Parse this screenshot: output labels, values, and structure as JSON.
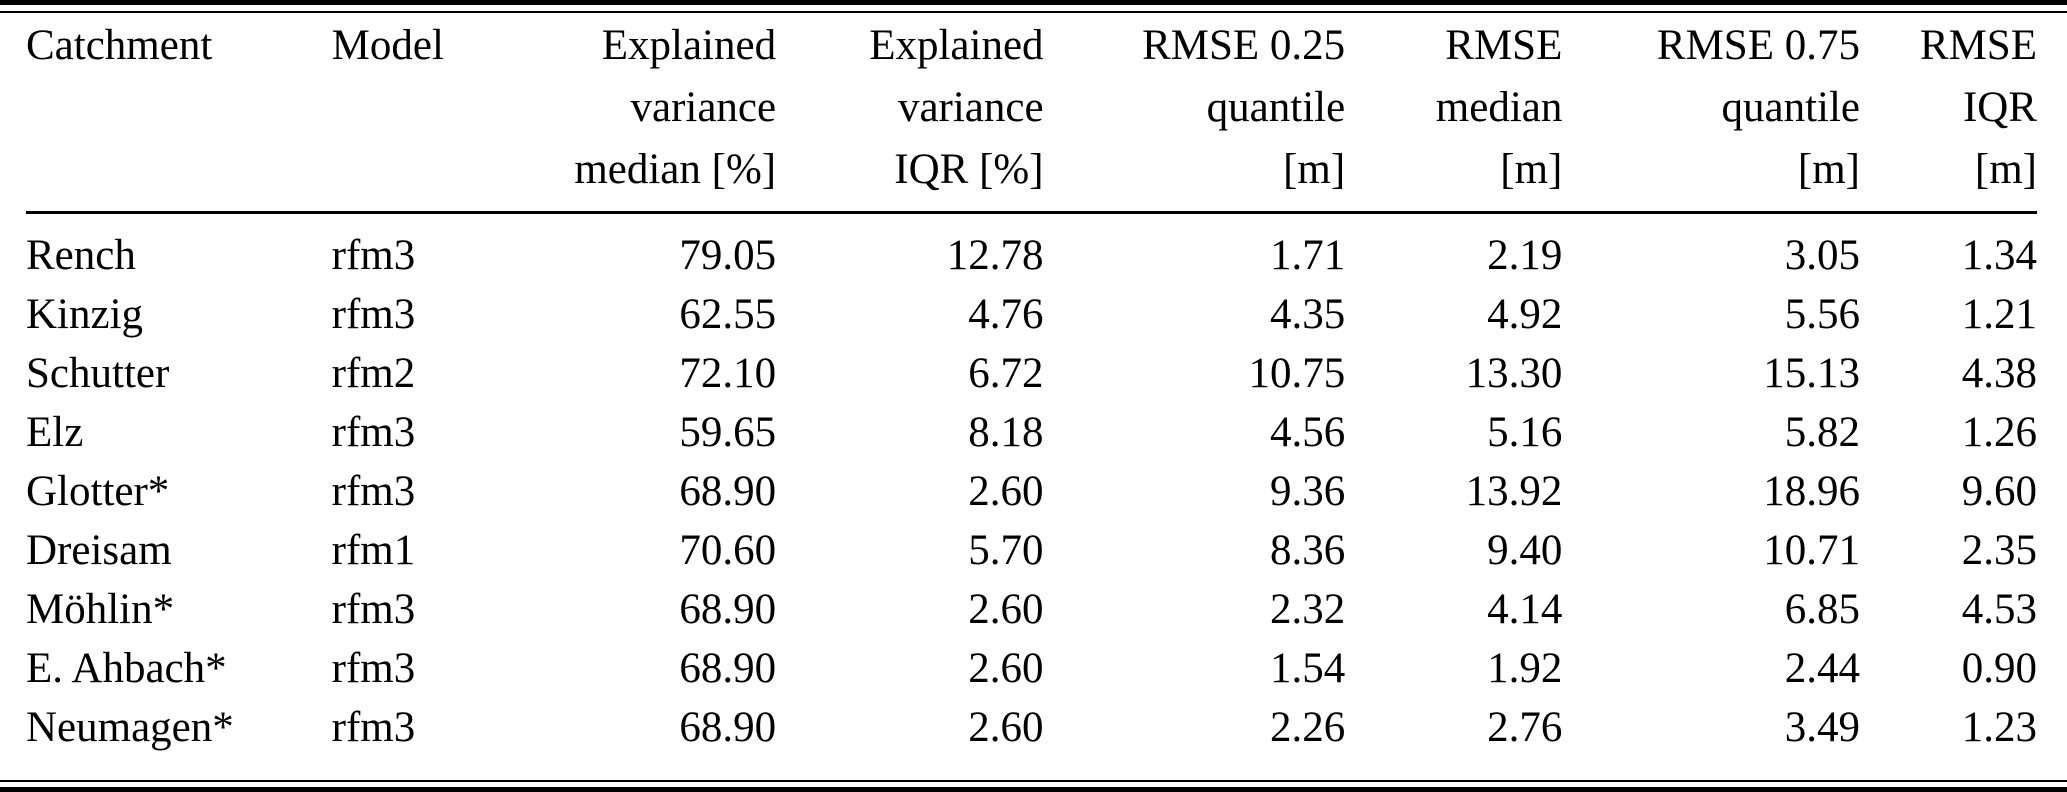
{
  "colors": {
    "text": "#000000",
    "background": "#ffffff",
    "rule": "#000000"
  },
  "table": {
    "columns": [
      {
        "id": "catchment",
        "align": "left",
        "header_lines": [
          "Catchment"
        ]
      },
      {
        "id": "model",
        "align": "left",
        "header_lines": [
          "Model"
        ]
      },
      {
        "id": "explained-variance-median",
        "align": "right",
        "header_lines": [
          "Explained",
          "variance",
          "median [%]"
        ]
      },
      {
        "id": "explained-variance-iqr",
        "align": "right",
        "header_lines": [
          "Explained",
          "variance",
          "IQR [%]"
        ]
      },
      {
        "id": "rmse-025-quantile",
        "align": "right",
        "header_lines": [
          "RMSE 0.25",
          "quantile",
          "[m]"
        ]
      },
      {
        "id": "rmse-median",
        "align": "right",
        "header_lines": [
          "RMSE",
          "median",
          "[m]"
        ]
      },
      {
        "id": "rmse-075-quantile",
        "align": "right",
        "header_lines": [
          "RMSE 0.75",
          "quantile",
          "[m]"
        ]
      },
      {
        "id": "rmse-iqr",
        "align": "right",
        "header_lines": [
          "RMSE",
          "IQR",
          "[m]"
        ]
      }
    ],
    "rows": [
      [
        "Rench",
        "rfm3",
        "79.05",
        "12.78",
        "1.71",
        "2.19",
        "3.05",
        "1.34"
      ],
      [
        "Kinzig",
        "rfm3",
        "62.55",
        "4.76",
        "4.35",
        "4.92",
        "5.56",
        "1.21"
      ],
      [
        "Schutter",
        "rfm2",
        "72.10",
        "6.72",
        "10.75",
        "13.30",
        "15.13",
        "4.38"
      ],
      [
        "Elz",
        "rfm3",
        "59.65",
        "8.18",
        "4.56",
        "5.16",
        "5.82",
        "1.26"
      ],
      [
        "Glotter*",
        "rfm3",
        "68.90",
        "2.60",
        "9.36",
        "13.92",
        "18.96",
        "9.60"
      ],
      [
        "Dreisam",
        "rfm1",
        "70.60",
        "5.70",
        "8.36",
        "9.40",
        "10.71",
        "2.35"
      ],
      [
        "Möhlin*",
        "rfm3",
        "68.90",
        "2.60",
        "2.32",
        "4.14",
        "6.85",
        "4.53"
      ],
      [
        "E. Ahbach*",
        "rfm3",
        "68.90",
        "2.60",
        "1.54",
        "1.92",
        "2.44",
        "0.90"
      ],
      [
        "Neumagen*",
        "rfm3",
        "68.90",
        "2.60",
        "2.26",
        "2.76",
        "3.49",
        "1.23"
      ]
    ]
  }
}
